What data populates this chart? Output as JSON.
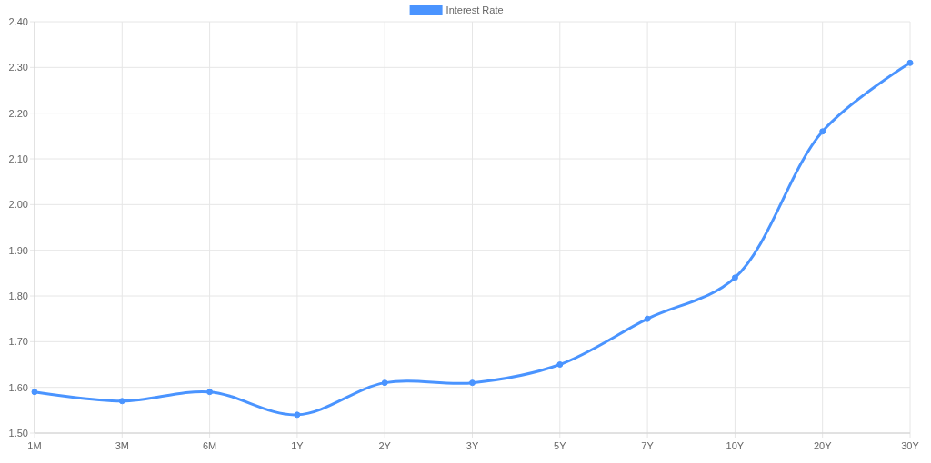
{
  "chart_data": {
    "type": "line",
    "categories": [
      "1M",
      "3M",
      "6M",
      "1Y",
      "2Y",
      "3Y",
      "5Y",
      "7Y",
      "10Y",
      "20Y",
      "30Y"
    ],
    "series": [
      {
        "name": "Interest Rate",
        "color": "#4a94ff",
        "values": [
          1.59,
          1.57,
          1.59,
          1.54,
          1.61,
          1.61,
          1.65,
          1.75,
          1.84,
          2.16,
          2.31
        ]
      }
    ],
    "ylim": [
      1.5,
      2.4
    ],
    "yticks": [
      {
        "value": 1.5,
        "label": "1.50"
      },
      {
        "value": 1.6,
        "label": "1.60"
      },
      {
        "value": 1.7,
        "label": "1.70"
      },
      {
        "value": 1.8,
        "label": "1.80"
      },
      {
        "value": 1.9,
        "label": "1.90"
      },
      {
        "value": 2.0,
        "label": "2.00"
      },
      {
        "value": 2.1,
        "label": "2.10"
      },
      {
        "value": 2.2,
        "label": "2.20"
      },
      {
        "value": 2.3,
        "label": "2.30"
      },
      {
        "value": 2.4,
        "label": "2.40"
      }
    ],
    "grid": true,
    "legend": "top",
    "marker": "circle",
    "line_style": "solid"
  }
}
